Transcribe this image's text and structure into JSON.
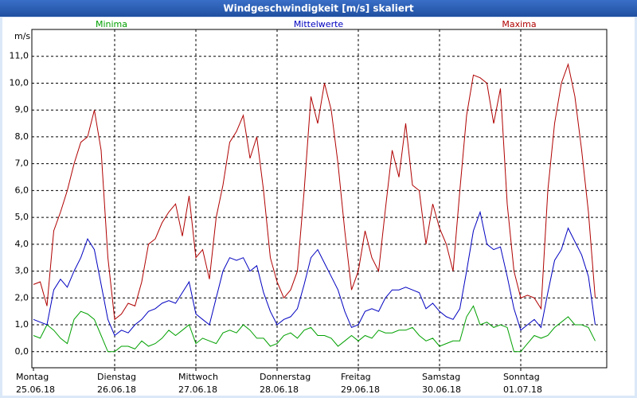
{
  "chart_data": {
    "type": "line",
    "title": "Windgeschwindigkeit [m/s] skaliert",
    "y_label": "m/s",
    "days": [
      "Montag",
      "Dienstag",
      "Mittwoch",
      "Donnerstag",
      "Freitag",
      "Samstag",
      "Sonntag"
    ],
    "dates": [
      "25.06.18",
      "26.06.18",
      "27.06.18",
      "28.06.18",
      "29.06.18",
      "30.06.18",
      "01.07.18"
    ],
    "ylim": [
      -0.6,
      12
    ],
    "yticks": [
      {
        "value": 0,
        "label": "0,0"
      },
      {
        "value": 1,
        "label": "1,0"
      },
      {
        "value": 2,
        "label": "2,0"
      },
      {
        "value": 3,
        "label": "3,0"
      },
      {
        "value": 4,
        "label": "4,0"
      },
      {
        "value": 5,
        "label": "5,0"
      },
      {
        "value": 6,
        "label": "6,0"
      },
      {
        "value": 7,
        "label": "7,0"
      },
      {
        "value": 8,
        "label": "8,0"
      },
      {
        "value": 9,
        "label": "9,0"
      },
      {
        "value": 10,
        "label": "10,0"
      },
      {
        "value": 11,
        "label": "11,0"
      }
    ],
    "grid": true,
    "series": [
      {
        "name": "Minima",
        "color": "#00a000",
        "values": [
          [
            0.6,
            0.5,
            1.0,
            0.8,
            0.5,
            0.3,
            1.2,
            1.5,
            1.4,
            1.2,
            0.6,
            0.0
          ],
          [
            0.0,
            0.2,
            0.2,
            0.1,
            0.4,
            0.2,
            0.3,
            0.5,
            0.8,
            0.6,
            0.8,
            1.0
          ],
          [
            0.3,
            0.5,
            0.4,
            0.3,
            0.7,
            0.8,
            0.7,
            1.0,
            0.8,
            0.5,
            0.5,
            0.2
          ],
          [
            0.3,
            0.6,
            0.7,
            0.5,
            0.8,
            0.9,
            0.6,
            0.6,
            0.5,
            0.2,
            0.4,
            0.6
          ],
          [
            0.4,
            0.6,
            0.5,
            0.8,
            0.7,
            0.7,
            0.8,
            0.8,
            0.9,
            0.6,
            0.4,
            0.5
          ],
          [
            0.2,
            0.3,
            0.4,
            0.4,
            1.3,
            1.7,
            1.0,
            1.1,
            0.9,
            1.0,
            0.9,
            0.0
          ],
          [
            0.0,
            0.3,
            0.6,
            0.5,
            0.6,
            0.9,
            1.1,
            1.3,
            1.0,
            1.0,
            0.9,
            0.4
          ]
        ]
      },
      {
        "name": "Mittelwerte",
        "color": "#0000c0",
        "values": [
          [
            1.2,
            1.1,
            1.0,
            2.3,
            2.7,
            2.4,
            3.0,
            3.5,
            4.2,
            3.8,
            2.5,
            1.2
          ],
          [
            0.6,
            0.8,
            0.7,
            1.0,
            1.2,
            1.5,
            1.6,
            1.8,
            1.9,
            1.8,
            2.2,
            2.6
          ],
          [
            1.4,
            1.2,
            1.0,
            2.0,
            3.0,
            3.5,
            3.4,
            3.5,
            3.0,
            3.2,
            2.2,
            1.5
          ],
          [
            1.0,
            1.2,
            1.3,
            1.6,
            2.5,
            3.5,
            3.8,
            3.3,
            2.8,
            2.3,
            1.5,
            0.9
          ],
          [
            1.0,
            1.5,
            1.6,
            1.5,
            2.0,
            2.3,
            2.3,
            2.4,
            2.3,
            2.2,
            1.6,
            1.8
          ],
          [
            1.5,
            1.3,
            1.2,
            1.6,
            3.0,
            4.5,
            5.2,
            4.0,
            3.8,
            3.9,
            2.8,
            1.6
          ],
          [
            0.8,
            1.0,
            1.2,
            0.9,
            2.2,
            3.4,
            3.8,
            4.6,
            4.1,
            3.6,
            2.8,
            1.0
          ]
        ]
      },
      {
        "name": "Maxima",
        "color": "#b00000",
        "values": [
          [
            2.5,
            2.6,
            1.7,
            4.5,
            5.2,
            6.0,
            7.0,
            7.8,
            8.0,
            9.0,
            7.5,
            3.5
          ],
          [
            1.2,
            1.4,
            1.8,
            1.7,
            2.6,
            4.0,
            4.2,
            4.8,
            5.2,
            5.5,
            4.3,
            5.8
          ],
          [
            3.5,
            3.8,
            2.7,
            5.0,
            6.2,
            7.8,
            8.2,
            8.8,
            7.2,
            8.0,
            6.0,
            3.5
          ],
          [
            2.6,
            2.0,
            2.3,
            3.0,
            6.0,
            9.5,
            8.5,
            10.0,
            9.0,
            7.0,
            4.5,
            2.3
          ],
          [
            3.0,
            4.5,
            3.5,
            3.0,
            5.3,
            7.5,
            6.5,
            8.5,
            6.2,
            6.0,
            4.0,
            5.5
          ],
          [
            4.6,
            4.0,
            3.0,
            6.0,
            8.8,
            10.3,
            10.2,
            10.0,
            8.5,
            9.8,
            5.5,
            3.0
          ],
          [
            2.0,
            2.1,
            2.0,
            1.6,
            6.0,
            8.5,
            10.0,
            10.7,
            9.5,
            7.5,
            5.2,
            2.0
          ]
        ]
      }
    ]
  }
}
